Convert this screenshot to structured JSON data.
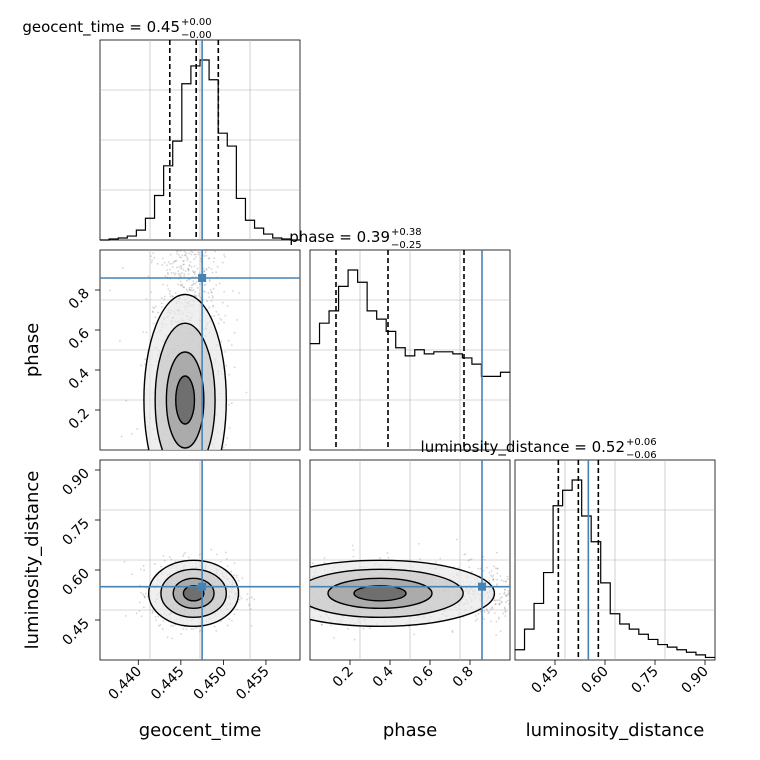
{
  "chart_data": {
    "type": "corner",
    "parameters": [
      "geocent_time",
      "phase",
      "luminosity_distance"
    ],
    "truths": {
      "geocent_time": 0.4475,
      "phase": 0.86,
      "luminosity_distance": 0.55
    },
    "colors": {
      "truth": "#4682b4",
      "hist": "#000000",
      "grid": "#b0b0b0",
      "points": "#888888"
    },
    "ranges": {
      "geocent_time": [
        0.4355,
        0.459
      ],
      "phase": [
        0.0,
        1.0
      ],
      "luminosity_distance": [
        0.33,
        0.93
      ]
    },
    "ticks": {
      "geocent_time": {
        "values": [
          0.44,
          0.445,
          0.45,
          0.455
        ],
        "labels": [
          "0.440",
          "0.445",
          "0.450",
          "0.455"
        ]
      },
      "phase": {
        "values": [
          0.2,
          0.4,
          0.6,
          0.8
        ],
        "labels": [
          "0.2",
          "0.4",
          "0.6",
          "0.8"
        ]
      },
      "luminosity_distance": {
        "values": [
          0.45,
          0.6,
          0.75,
          0.9
        ],
        "labels": [
          "0.45",
          "0.60",
          "0.75",
          "0.90"
        ]
      }
    },
    "titles": [
      {
        "param": "geocent_time",
        "base": "geocent_time = 0.45",
        "plus": "+0.00",
        "minus": "−0.00"
      },
      {
        "param": "phase",
        "base": "phase = 0.39",
        "plus": "+0.38",
        "minus": "−0.25"
      },
      {
        "param": "luminosity_distance",
        "base": "luminosity_distance = 0.52",
        "plus": "+0.06",
        "minus": "−0.06"
      }
    ],
    "quantiles": {
      "geocent_time": [
        0.4437,
        0.4468,
        0.4494
      ],
      "phase": [
        0.13,
        0.39,
        0.77
      ],
      "luminosity_distance": [
        0.46,
        0.52,
        0.58
      ]
    },
    "histograms": {
      "geocent_time": [
        0,
        1,
        2,
        4,
        10,
        22,
        45,
        75,
        100,
        158,
        176,
        182,
        162,
        108,
        95,
        42,
        20,
        12,
        6,
        2,
        1,
        0
      ],
      "phase": [
        0.52,
        0.62,
        0.68,
        0.8,
        0.88,
        0.82,
        0.68,
        0.64,
        0.58,
        0.5,
        0.46,
        0.49,
        0.47,
        0.48,
        0.48,
        0.47,
        0.45,
        0.42,
        0.36,
        0.36,
        0.38
      ],
      "luminosity_distance": [
        0.04,
        0.12,
        0.22,
        0.34,
        0.6,
        0.66,
        0.7,
        0.56,
        0.46,
        0.3,
        0.18,
        0.14,
        0.12,
        0.1,
        0.08,
        0.06,
        0.05,
        0.04,
        0.03,
        0.02,
        0.01
      ]
    },
    "samples_2d": [
      {
        "x": "geocent_time",
        "y": "phase",
        "center": [
          0.4455,
          0.25
        ],
        "spread": [
          0.0022,
          0.24
        ]
      },
      {
        "x": "geocent_time",
        "y": "luminosity_distance",
        "center": [
          0.4465,
          0.53
        ],
        "spread": [
          0.0024,
          0.045
        ]
      },
      {
        "x": "phase",
        "y": "luminosity_distance",
        "center": [
          0.35,
          0.53
        ],
        "spread": [
          0.26,
          0.045
        ]
      }
    ],
    "axis_labels": {
      "geocent_time": "geocent_time",
      "phase": "phase",
      "luminosity_distance": "luminosity_distance"
    }
  }
}
